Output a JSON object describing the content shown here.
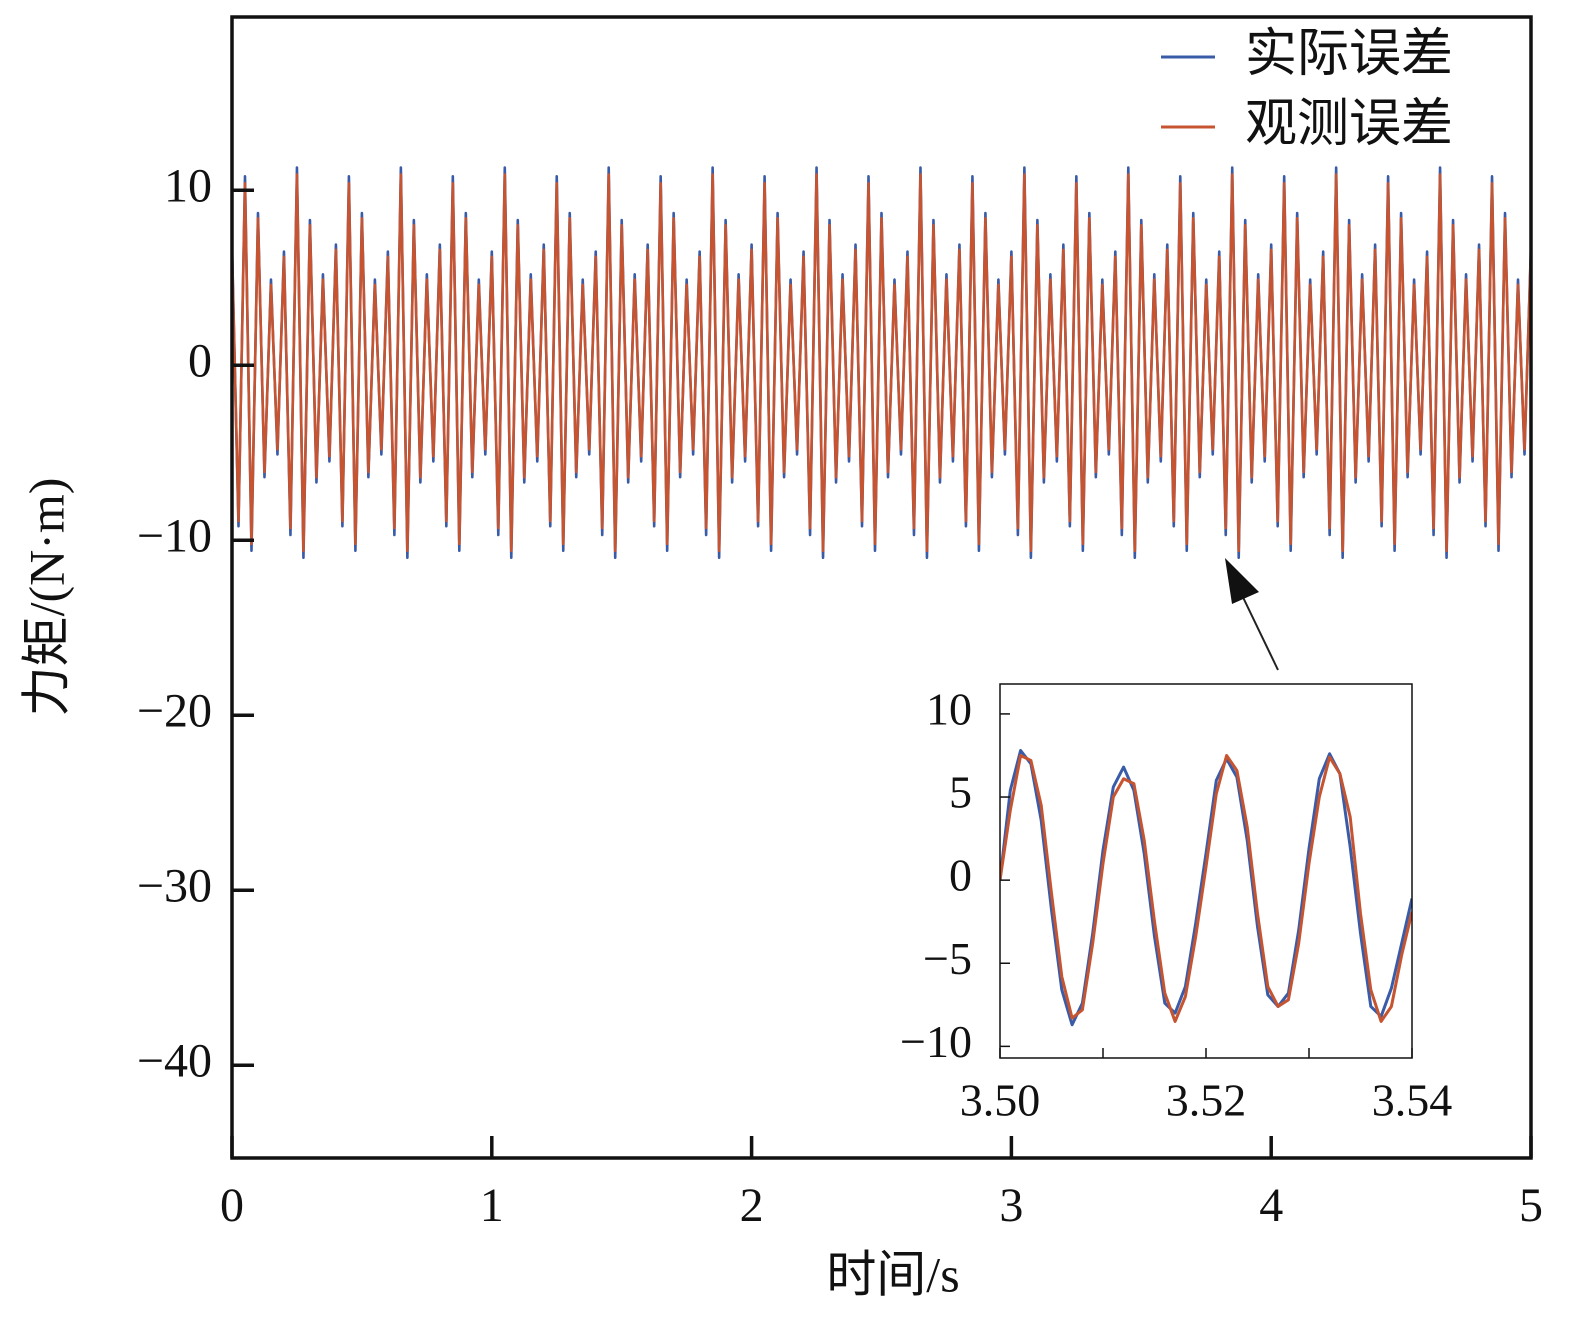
{
  "chart_data": [
    {
      "type": "line",
      "x_label": "时间/s",
      "y_label": "力矩/(N·m)",
      "xlim": [
        0,
        5
      ],
      "xticks": [
        0,
        1,
        2,
        3,
        4,
        5
      ],
      "ylim": [
        -45.3,
        19.9
      ],
      "yticks": [
        {
          "value": 10,
          "label": "10"
        },
        {
          "value": 0,
          "label": "0"
        },
        {
          "value": -10,
          "label": "−10"
        },
        {
          "value": -20,
          "label": "−20"
        },
        {
          "value": -30,
          "label": "−30"
        },
        {
          "value": -40,
          "label": "−40"
        }
      ],
      "legend": "upper right",
      "x": [
        0,
        0.025,
        0.05,
        0.075,
        0.1,
        0.125,
        0.15,
        0.175,
        0.2,
        0.225,
        0.25,
        0.275,
        0.3,
        0.325,
        0.35,
        0.375,
        0.4,
        0.425,
        0.45,
        0.475,
        0.5,
        0.525,
        0.55,
        0.575,
        0.6,
        0.625,
        0.65,
        0.675,
        0.7,
        0.725,
        0.75,
        0.775,
        0.8,
        0.825,
        0.85,
        0.875,
        0.9,
        0.925,
        0.95,
        0.975,
        1,
        1.025,
        1.05,
        1.075,
        1.1,
        1.125,
        1.15,
        1.175,
        1.2,
        1.225,
        1.25,
        1.275,
        1.3,
        1.325,
        1.35,
        1.375,
        1.4,
        1.425,
        1.45,
        1.475,
        1.5,
        1.525,
        1.55,
        1.575,
        1.6,
        1.625,
        1.65,
        1.675,
        1.7,
        1.725,
        1.75,
        1.775,
        1.8,
        1.825,
        1.85,
        1.875,
        1.9,
        1.925,
        1.95,
        1.975,
        2,
        2.025,
        2.05,
        2.075,
        2.1,
        2.125,
        2.15,
        2.175,
        2.2,
        2.225,
        2.25,
        2.275,
        2.3,
        2.325,
        2.35,
        2.375,
        2.4,
        2.425,
        2.45,
        2.475,
        2.5,
        2.525,
        2.55,
        2.575,
        2.6,
        2.625,
        2.65,
        2.675,
        2.7,
        2.725,
        2.75,
        2.775,
        2.8,
        2.825,
        2.85,
        2.875,
        2.9,
        2.925,
        2.95,
        2.975,
        3,
        3.025,
        3.05,
        3.075,
        3.1,
        3.125,
        3.15,
        3.175,
        3.2,
        3.225,
        3.25,
        3.275,
        3.3,
        3.325,
        3.35,
        3.375,
        3.4,
        3.425,
        3.45,
        3.475,
        3.5,
        3.525,
        3.55,
        3.575,
        3.6,
        3.625,
        3.65,
        3.675,
        3.7,
        3.725,
        3.75,
        3.775,
        3.8,
        3.825,
        3.85,
        3.875,
        3.9,
        3.925,
        3.95,
        3.975,
        4,
        4.025,
        4.05,
        4.075,
        4.1,
        4.125,
        4.15,
        4.175,
        4.2,
        4.225,
        4.25,
        4.275,
        4.3,
        4.325,
        4.35,
        4.375,
        4.4,
        4.425,
        4.45,
        4.475,
        4.5,
        4.525,
        4.55,
        4.575,
        4.6,
        4.625,
        4.65,
        4.675,
        4.7,
        4.725,
        4.75,
        4.775,
        4.8,
        4.825,
        4.85,
        4.875,
        4.9,
        4.925,
        4.95,
        4.975,
        5
      ],
      "series": [
        {
          "name": "实际误差",
          "color": "#3a5ca8",
          "values": [
            6.9,
            -9.2,
            10.8,
            -10.6,
            8.7,
            -6.4,
            4.9,
            -5.1,
            6.5,
            -9.7,
            11.3,
            -11.0,
            8.3,
            -6.7,
            5.2,
            -5.5,
            6.9,
            -9.2,
            10.8,
            -10.6,
            8.7,
            -6.4,
            4.9,
            -5.1,
            6.5,
            -9.7,
            11.3,
            -11.0,
            8.3,
            -6.7,
            5.2,
            -5.5,
            6.9,
            -9.2,
            10.8,
            -10.6,
            8.7,
            -6.4,
            4.9,
            -5.1,
            6.5,
            -9.7,
            11.3,
            -11.0,
            8.3,
            -6.7,
            5.2,
            -5.5,
            6.9,
            -9.2,
            10.8,
            -10.6,
            8.7,
            -6.4,
            4.9,
            -5.1,
            6.5,
            -9.7,
            11.3,
            -11.0,
            8.3,
            -6.7,
            5.2,
            -5.5,
            6.9,
            -9.2,
            10.8,
            -10.6,
            8.7,
            -6.4,
            4.9,
            -5.1,
            6.5,
            -9.7,
            11.3,
            -11.0,
            8.3,
            -6.7,
            5.2,
            -5.5,
            6.9,
            -9.2,
            10.8,
            -10.6,
            8.7,
            -6.4,
            4.9,
            -5.1,
            6.5,
            -9.7,
            11.3,
            -11.0,
            8.3,
            -6.7,
            5.2,
            -5.5,
            6.9,
            -9.2,
            10.8,
            -10.6,
            8.7,
            -6.4,
            4.9,
            -5.1,
            6.5,
            -9.7,
            11.3,
            -11.0,
            8.3,
            -6.7,
            5.2,
            -5.5,
            6.9,
            -9.2,
            10.8,
            -10.6,
            8.7,
            -6.4,
            4.9,
            -5.1,
            6.5,
            -9.7,
            11.3,
            -11.0,
            8.3,
            -6.7,
            5.2,
            -5.5,
            6.9,
            -9.2,
            10.8,
            -10.6,
            8.7,
            -6.4,
            4.9,
            -5.1,
            6.5,
            -9.7,
            11.3,
            -11.0,
            8.3,
            -6.7,
            5.2,
            -5.5,
            6.9,
            -9.2,
            10.8,
            -10.6,
            8.7,
            -6.4,
            4.9,
            -5.1,
            6.5,
            -9.7,
            11.3,
            -11.0,
            8.3,
            -6.7,
            5.2,
            -5.5,
            6.9,
            -9.2,
            10.8,
            -10.6,
            8.7,
            -6.4,
            4.9,
            -5.1,
            6.5,
            -9.7,
            11.3,
            -11.0,
            8.3,
            -6.7,
            5.2,
            -5.5,
            6.9,
            -9.2,
            10.8,
            -10.6,
            8.7,
            -6.4,
            4.9,
            -5.1,
            6.5,
            -9.7,
            11.3,
            -11.0,
            8.3,
            -6.7,
            5.2,
            -5.5,
            6.9,
            -9.2,
            10.8,
            -10.6,
            8.7,
            -6.4,
            4.9,
            -5.1,
            6.9
          ]
        },
        {
          "name": "观测误差",
          "color": "#c65430",
          "values": [
            6.6,
            -8.9,
            10.4,
            -10.2,
            8.4,
            -6.1,
            4.6,
            -4.8,
            6.2,
            -9.3,
            10.9,
            -10.6,
            8.0,
            -6.4,
            4.9,
            -5.2,
            6.6,
            -8.9,
            10.4,
            -10.2,
            8.4,
            -6.1,
            4.6,
            -4.8,
            6.2,
            -9.3,
            10.9,
            -10.6,
            8.0,
            -6.4,
            4.9,
            -5.2,
            6.6,
            -8.9,
            10.4,
            -10.2,
            8.4,
            -6.1,
            4.6,
            -4.8,
            6.2,
            -9.3,
            10.9,
            -10.6,
            8.0,
            -6.4,
            4.9,
            -5.2,
            6.6,
            -8.9,
            10.4,
            -10.2,
            8.4,
            -6.1,
            4.6,
            -4.8,
            6.2,
            -9.3,
            10.9,
            -10.6,
            8.0,
            -6.4,
            4.9,
            -5.2,
            6.6,
            -8.9,
            10.4,
            -10.2,
            8.4,
            -6.1,
            4.6,
            -4.8,
            6.2,
            -9.3,
            10.9,
            -10.6,
            8.0,
            -6.4,
            4.9,
            -5.2,
            6.6,
            -8.9,
            10.4,
            -10.2,
            8.4,
            -6.1,
            4.6,
            -4.8,
            6.2,
            -9.3,
            10.9,
            -10.6,
            8.0,
            -6.4,
            4.9,
            -5.2,
            6.6,
            -8.9,
            10.4,
            -10.2,
            8.4,
            -6.1,
            4.6,
            -4.8,
            6.2,
            -9.3,
            10.9,
            -10.6,
            8.0,
            -6.4,
            4.9,
            -5.2,
            6.6,
            -8.9,
            10.4,
            -10.2,
            8.4,
            -6.1,
            4.6,
            -4.8,
            6.2,
            -9.3,
            10.9,
            -10.6,
            8.0,
            -6.4,
            4.9,
            -5.2,
            6.6,
            -8.9,
            10.4,
            -10.2,
            8.4,
            -6.1,
            4.6,
            -4.8,
            6.2,
            -9.3,
            10.9,
            -10.6,
            8.0,
            -6.4,
            4.9,
            -5.2,
            6.6,
            -8.9,
            10.4,
            -10.2,
            8.4,
            -6.1,
            4.6,
            -4.8,
            6.2,
            -9.3,
            10.9,
            -10.6,
            8.0,
            -6.4,
            4.9,
            -5.2,
            6.6,
            -8.9,
            10.4,
            -10.2,
            8.4,
            -6.1,
            4.6,
            -4.8,
            6.2,
            -9.3,
            10.9,
            -10.6,
            8.0,
            -6.4,
            4.9,
            -5.2,
            6.6,
            -8.9,
            10.4,
            -10.2,
            8.4,
            -6.1,
            4.6,
            -4.8,
            6.2,
            -9.3,
            10.9,
            -10.6,
            8.0,
            -6.4,
            4.9,
            -5.2,
            6.6,
            -8.9,
            10.4,
            -10.2,
            8.4,
            -6.1,
            4.6,
            -4.8,
            6.6
          ]
        }
      ]
    },
    {
      "type": "line",
      "xlim": [
        3.5,
        3.54
      ],
      "xticks": [
        {
          "value": 3.5,
          "label": "3.50"
        },
        3.52,
        3.54
      ],
      "xminor": [
        3.51,
        3.53
      ],
      "ylim": [
        -10.7,
        11.8
      ],
      "yticks": [
        {
          "value": 10,
          "label": "10"
        },
        {
          "value": 5,
          "label": "5"
        },
        {
          "value": 0,
          "label": "0"
        },
        {
          "value": -5,
          "label": "−5"
        },
        {
          "value": -10,
          "label": "−10"
        }
      ],
      "x": [
        3.5,
        3.501,
        3.502,
        3.503,
        3.504,
        3.505,
        3.506,
        3.507,
        3.508,
        3.509,
        3.51,
        3.511,
        3.512,
        3.513,
        3.514,
        3.515,
        3.516,
        3.517,
        3.518,
        3.519,
        3.52,
        3.521,
        3.522,
        3.523,
        3.524,
        3.525,
        3.526,
        3.527,
        3.528,
        3.529,
        3.53,
        3.531,
        3.532,
        3.533,
        3.534,
        3.535,
        3.536,
        3.537,
        3.538,
        3.539,
        3.54
      ],
      "series": [
        {
          "color": "#3a5ca8",
          "values": [
            0,
            5.4,
            7.8,
            7.0,
            3.6,
            -1.8,
            -6.6,
            -8.7,
            -7.4,
            -3.2,
            1.8,
            5.6,
            6.8,
            5.4,
            1.6,
            -3.4,
            -7.4,
            -8.0,
            -6.4,
            -2.6,
            1.6,
            6.0,
            7.3,
            6.2,
            2.4,
            -2.8,
            -6.9,
            -7.6,
            -6.8,
            -3.0,
            1.9,
            6.1,
            7.6,
            6.4,
            2.0,
            -3.2,
            -7.6,
            -8.2,
            -6.5,
            -3.8,
            -1.1
          ]
        },
        {
          "color": "#c65430",
          "values": [
            0,
            4.2,
            7.5,
            7.2,
            4.5,
            -0.8,
            -5.8,
            -8.3,
            -7.8,
            -3.8,
            1.0,
            5.0,
            6.1,
            5.8,
            2.4,
            -2.5,
            -6.8,
            -8.5,
            -7.0,
            -3.4,
            0.8,
            5.2,
            7.5,
            6.6,
            3.2,
            -2.0,
            -6.4,
            -7.6,
            -7.2,
            -3.8,
            1.0,
            5.0,
            7.4,
            6.4,
            3.8,
            -2.0,
            -6.6,
            -8.5,
            -7.6,
            -4.5,
            -1.9
          ]
        }
      ]
    }
  ]
}
